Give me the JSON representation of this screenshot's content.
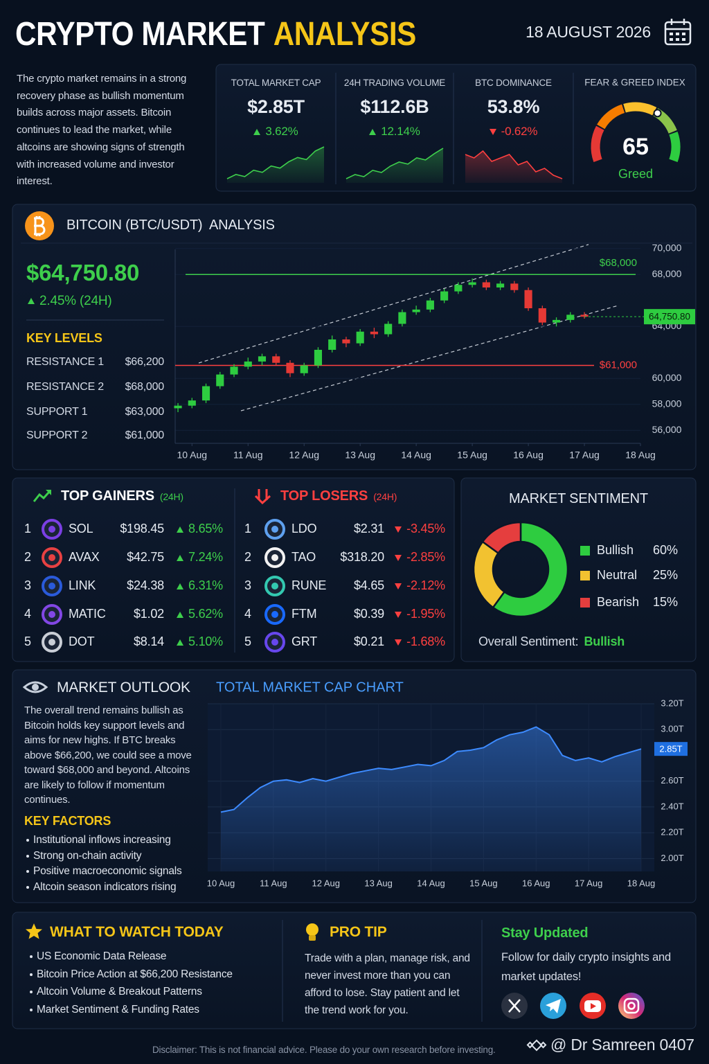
{
  "header": {
    "title_1": "CRYPTO MARKET",
    "title_2": "ANALYSIS",
    "date": "18 AUGUST 2026"
  },
  "intro": "The crypto market remains in a strong recovery phase as bullish momentum builds across major assets. Bitcoin continues to lead the market, while altcoins are showing signs of strength with increased volume and investor interest.",
  "stats": [
    {
      "label": "TOTAL MARKET CAP",
      "value": "$2.85T",
      "change": "3.62%"
    },
    {
      "label": "24H TRADING VOLUME",
      "value": "$112.6B",
      "change": "12.14%"
    },
    {
      "label": "BTC DOMINANCE",
      "value": "53.8%",
      "change": "-0.62%"
    }
  ],
  "btc": {
    "title": "BITCOIN (BTC/USDT)  ANALYSIS",
    "price": "$64,750.80",
    "change": "2.45% (24H)",
    "key_levels_title": "KEY LEVELS",
    "key_levels": [
      [
        "RESISTANCE 1",
        "$66,200"
      ],
      [
        "RESISTANCE 2",
        "$68,000"
      ],
      [
        "SUPPORT 1",
        "$63,000"
      ],
      [
        "SUPPORT 2",
        "$61,000"
      ]
    ]
  },
  "gainers": {
    "title": "TOP GAINERS",
    "period": "(24H)",
    "rows": [
      [
        "1",
        "SOL",
        "$198.45",
        "8.65%"
      ],
      [
        "2",
        "AVAX",
        "$42.75",
        "7.24%"
      ],
      [
        "3",
        "LINK",
        "$24.38",
        "6.31%"
      ],
      [
        "4",
        "MATIC",
        "$1.02",
        "5.62%"
      ],
      [
        "5",
        "DOT",
        "$8.14",
        "5.10%"
      ]
    ]
  },
  "losers": {
    "title": "TOP LOSERS",
    "period": "(24H)",
    "rows": [
      [
        "1",
        "LDO",
        "$2.31",
        "-3.45%"
      ],
      [
        "2",
        "TAO",
        "$318.20",
        "-2.85%"
      ],
      [
        "3",
        "RUNE",
        "$4.65",
        "-2.12%"
      ],
      [
        "4",
        "FTM",
        "$0.39",
        "-1.95%"
      ],
      [
        "5",
        "GRT",
        "$0.21",
        "-1.68%"
      ]
    ]
  },
  "sentiment": {
    "title": "MARKET SENTIMENT",
    "overall_label": "Overall Sentiment:",
    "overall": "Bullish"
  },
  "outlook": {
    "title": "MARKET OUTLOOK",
    "text": "The overall trend remains bullish as Bitcoin holds key support levels and aims for new highs. If BTC breaks above $66,200, we could see a move toward $68,000 and beyond. Altcoins are likely to follow if momentum continues.",
    "factors_title": "KEY FACTORS",
    "factors": [
      "Institutional inflows increasing",
      "Strong on-chain activity",
      "Positive macroeconomic signals",
      "Altcoin season indicators rising"
    ]
  },
  "watch": {
    "title": "WHAT TO WATCH TODAY",
    "items": [
      "US Economic Data Release",
      "Bitcoin Price Action at $66,200 Resistance",
      "Altcoin Volume & Breakout Patterns",
      "Market Sentiment & Funding Rates"
    ]
  },
  "tip": {
    "title": "PRO TIP",
    "text": "Trade with a plan, manage risk, and never invest more than you can afford to lose. Stay patient and let the trend work for you."
  },
  "social": {
    "title": "Stay Updated",
    "text": "Follow for daily crypto insights and market updates!"
  },
  "footer": {
    "disclaimer": "Disclaimer: This is not financial advice. Please do your own research before investing.",
    "credit": "@ Dr Samreen 0407"
  },
  "chart_data": [
    {
      "type": "line",
      "color": "#3ecf4c",
      "values": [
        2.7,
        2.72,
        2.71,
        2.74,
        2.73,
        2.76,
        2.75,
        2.78,
        2.8,
        2.79,
        2.83,
        2.85
      ]
    },
    {
      "type": "line",
      "color": "#3ecf4c",
      "values": [
        98,
        100,
        99,
        102,
        101,
        104,
        106,
        105,
        108,
        107,
        110,
        112.6
      ]
    },
    {
      "type": "line",
      "color": "#ff4040",
      "values": [
        54.5,
        54.4,
        54.6,
        54.3,
        54.4,
        54.5,
        54.2,
        54.3,
        54.0,
        54.1,
        53.9,
        53.8
      ]
    },
    {
      "type": "gauge",
      "title": "FEAR & GREED INDEX",
      "value": 65,
      "label": "Greed",
      "range": [
        0,
        100
      ]
    },
    {
      "type": "candlestick",
      "up_color": "#2ecc40",
      "down_color": "#e53935",
      "grid": true,
      "x": [
        9.75,
        10,
        10.25,
        10.5,
        10.75,
        11,
        11.25,
        11.5,
        11.75,
        12,
        12.25,
        12.5,
        12.75,
        13,
        13.25,
        13.5,
        13.75,
        14,
        14.25,
        14.5,
        14.75,
        15,
        15.25,
        15.5,
        15.75,
        16,
        16.25,
        16.5,
        16.75,
        17
      ],
      "open": [
        57700,
        57900,
        58300,
        59400,
        60300,
        60900,
        61300,
        61700,
        61200,
        60400,
        61000,
        62200,
        63000,
        62700,
        63600,
        63400,
        64200,
        65100,
        65300,
        66000,
        66700,
        67200,
        67400,
        67000,
        67300,
        66800,
        65400,
        64300,
        64500,
        64900
      ],
      "high": [
        58100,
        58500,
        59600,
        60500,
        61100,
        61600,
        61900,
        61900,
        61400,
        61200,
        62400,
        63300,
        63200,
        63800,
        63900,
        64400,
        65300,
        65600,
        66200,
        66900,
        67400,
        67700,
        67600,
        67500,
        67500,
        67000,
        65600,
        64700,
        65100,
        65100
      ],
      "low": [
        57400,
        57700,
        58100,
        59200,
        60100,
        60700,
        61000,
        61000,
        60100,
        60200,
        60800,
        62000,
        62400,
        62500,
        63100,
        63200,
        64000,
        64900,
        65100,
        65800,
        66500,
        67000,
        66800,
        66800,
        66600,
        65200,
        64100,
        64000,
        64300,
        64600
      ],
      "close": [
        57900,
        58300,
        59400,
        60300,
        60900,
        61300,
        61700,
        61200,
        60400,
        61000,
        62200,
        63000,
        62700,
        63600,
        63400,
        64200,
        65100,
        65300,
        66000,
        66700,
        67200,
        67400,
        67000,
        67300,
        66800,
        65400,
        64300,
        64500,
        64900,
        64750
      ],
      "xlim": [
        9.7,
        18
      ],
      "xticks": [
        {
          "value": 10,
          "label": "10 Aug"
        },
        {
          "value": 11,
          "label": "11 Aug"
        },
        {
          "value": 12,
          "label": "12 Aug"
        },
        {
          "value": 13,
          "label": "13 Aug"
        },
        {
          "value": 14,
          "label": "14 Aug"
        },
        {
          "value": 15,
          "label": "15 Aug"
        },
        {
          "value": 16,
          "label": "16 Aug"
        },
        {
          "value": 17,
          "label": "17 Aug"
        },
        {
          "value": 18,
          "label": "18 Aug"
        }
      ],
      "ylim": [
        55000,
        71000
      ],
      "yticks": [
        {
          "value": 70000,
          "label": "70,000"
        },
        {
          "value": 68000,
          "label": "68,000"
        },
        {
          "value": 64000,
          "label": "64,000"
        },
        {
          "value": 60000,
          "label": "60,000"
        },
        {
          "value": 58000,
          "label": "58,000"
        },
        {
          "value": 56000,
          "label": "56,000"
        }
      ],
      "levels": [
        {
          "value": 68000,
          "label": "$68,000",
          "color": "#3ecf4c"
        },
        {
          "value": 61000,
          "label": "$61,000",
          "color": "#ff4040"
        }
      ],
      "current": {
        "value": 64750.8,
        "label": "64,750.80"
      }
    },
    {
      "type": "donut",
      "categories": [
        "Bullish",
        "Neutral",
        "Bearish"
      ],
      "values": [
        60,
        25,
        15
      ],
      "value_labels": [
        "60%",
        "25%",
        "15%"
      ],
      "colors": [
        "#2ecc40",
        "#f2c230",
        "#e53e3e"
      ]
    },
    {
      "type": "line",
      "title": "TOTAL MARKET CAP CHART",
      "color": "#3d8bff",
      "grid": true,
      "x": [
        10,
        10.25,
        10.5,
        10.75,
        11,
        11.25,
        11.5,
        11.75,
        12,
        12.25,
        12.5,
        12.75,
        13,
        13.25,
        13.5,
        13.75,
        14,
        14.25,
        14.5,
        14.75,
        15,
        15.25,
        15.5,
        15.75,
        16,
        16.25,
        16.5,
        16.75,
        17,
        17.25,
        17.5,
        17.75,
        18
      ],
      "values": [
        2.36,
        2.38,
        2.47,
        2.55,
        2.6,
        2.61,
        2.59,
        2.62,
        2.6,
        2.63,
        2.66,
        2.68,
        2.7,
        2.69,
        2.71,
        2.73,
        2.72,
        2.76,
        2.83,
        2.84,
        2.86,
        2.92,
        2.96,
        2.98,
        3.02,
        2.96,
        2.8,
        2.76,
        2.78,
        2.75,
        2.79,
        2.82,
        2.85
      ],
      "xlim": [
        9.75,
        18.25
      ],
      "xticks": [
        {
          "value": 10,
          "label": "10 Aug"
        },
        {
          "value": 11,
          "label": "11 Aug"
        },
        {
          "value": 12,
          "label": "12 Aug"
        },
        {
          "value": 13,
          "label": "13 Aug"
        },
        {
          "value": 14,
          "label": "14 Aug"
        },
        {
          "value": 15,
          "label": "15 Aug"
        },
        {
          "value": 16,
          "label": "16 Aug"
        },
        {
          "value": 17,
          "label": "17 Aug"
        },
        {
          "value": 18,
          "label": "18 Aug"
        }
      ],
      "ylim": [
        1.9,
        3.2
      ],
      "yticks": [
        {
          "value": 3.2,
          "label": "3.20T"
        },
        {
          "value": 3.0,
          "label": "3.00T"
        },
        {
          "value": 2.6,
          "label": "2.60T"
        },
        {
          "value": 2.4,
          "label": "2.40T"
        },
        {
          "value": 2.2,
          "label": "2.20T"
        },
        {
          "value": 2.0,
          "label": "2.00T"
        }
      ],
      "current": {
        "value": 2.85,
        "label": "2.85T"
      }
    }
  ]
}
